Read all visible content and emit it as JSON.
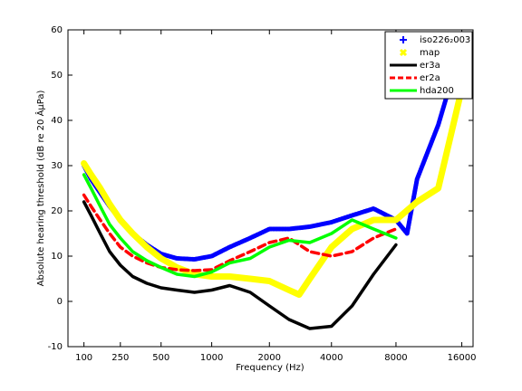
{
  "chart_data": {
    "type": "line",
    "xlabel": "Frequency (Hz)",
    "ylabel": "Absolute hearing threshold (dB re 20 ÂµPa)",
    "xscale": "erb",
    "xlim": [
      50,
      18000
    ],
    "xticks": [
      100,
      250,
      500,
      1000,
      2000,
      4000,
      8000,
      16000
    ],
    "ylim": [
      -10,
      60
    ],
    "yticks": [
      -10,
      0,
      10,
      20,
      30,
      40,
      50,
      60
    ],
    "legend": "upper right",
    "series": [
      {
        "name": "iso226₂003",
        "color": "#0000ff",
        "marker": "+",
        "x": [
          100,
          125,
          160,
          200,
          250,
          315,
          400,
          500,
          630,
          800,
          1000,
          1250,
          1600,
          2000,
          2500,
          3150,
          4000,
          5000,
          6300,
          8000,
          9000,
          10000,
          12500,
          15000
        ],
        "values": [
          30,
          27,
          24,
          21,
          18,
          15,
          12.5,
          10.5,
          9.5,
          9.3,
          10,
          12,
          14,
          16,
          16,
          16.5,
          17.5,
          19,
          20.5,
          18,
          15,
          27,
          39,
          52
        ]
      },
      {
        "name": "map",
        "color": "#ffff00",
        "marker": "x",
        "x": [
          100,
          125,
          160,
          200,
          250,
          315,
          400,
          500,
          630,
          800,
          1000,
          1250,
          1600,
          2000,
          2500,
          2800,
          3150,
          4000,
          5000,
          6300,
          8000,
          10000,
          12500,
          16000
        ],
        "values": [
          30.5,
          28,
          25,
          21.5,
          18,
          15,
          12,
          9.5,
          7.5,
          6,
          5.5,
          5.5,
          5,
          4.5,
          2.5,
          1.5,
          5,
          12,
          16,
          18,
          18,
          22,
          25,
          47
        ]
      },
      {
        "name": "er3a",
        "color": "#000000",
        "dash": "solid",
        "x": [
          100,
          125,
          160,
          200,
          250,
          315,
          400,
          500,
          630,
          800,
          1000,
          1250,
          1600,
          2000,
          2500,
          3150,
          4000,
          5000,
          6300,
          8000
        ],
        "values": [
          22,
          19,
          15,
          11,
          8,
          5.5,
          4,
          3,
          2.5,
          2,
          2.5,
          3.5,
          2,
          -1,
          -4,
          -6,
          -5.5,
          -1,
          6,
          12.5
        ]
      },
      {
        "name": "er2a",
        "color": "#ff0000",
        "dash": "dashed",
        "x": [
          100,
          125,
          160,
          200,
          250,
          315,
          400,
          500,
          630,
          800,
          1000,
          1250,
          1600,
          2000,
          2500,
          3150,
          4000,
          5000,
          6300,
          8000
        ],
        "values": [
          23.5,
          21,
          18,
          15,
          12,
          10,
          8.5,
          7.5,
          7,
          6.8,
          7,
          9,
          11,
          13,
          14,
          11,
          10,
          11,
          14,
          16
        ]
      },
      {
        "name": "hda200",
        "color": "#00ff00",
        "dash": "solid",
        "x": [
          100,
          125,
          160,
          200,
          250,
          315,
          400,
          500,
          630,
          800,
          1000,
          1250,
          1600,
          2000,
          2500,
          3150,
          4000,
          5000,
          6300,
          8000
        ],
        "values": [
          28,
          25,
          21,
          17,
          14,
          11,
          9,
          7.5,
          6,
          5.5,
          6.5,
          8.5,
          9.5,
          12,
          13.5,
          13,
          15,
          18,
          16,
          14
        ]
      }
    ]
  }
}
